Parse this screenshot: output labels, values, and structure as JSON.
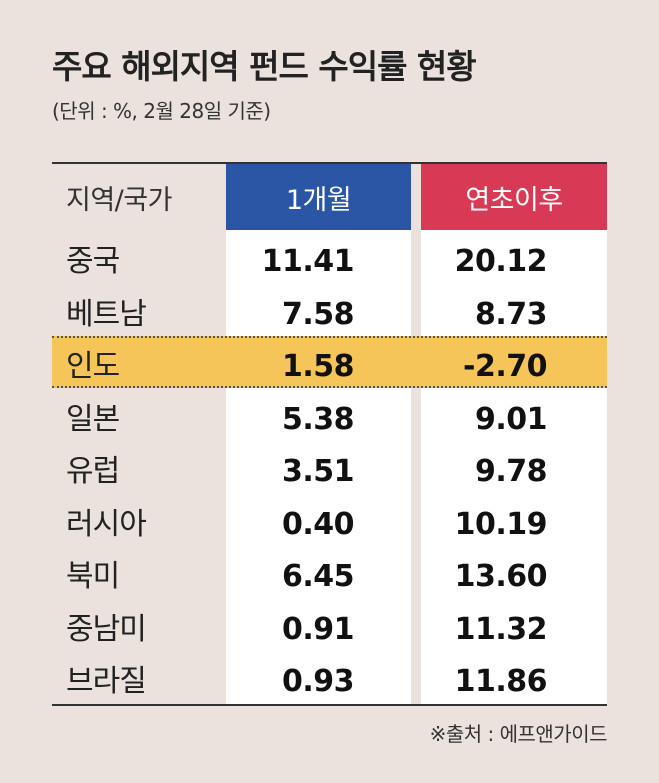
{
  "chart_data": {
    "type": "table",
    "title": "주요 해외지역 펀드 수익률 현황",
    "subtitle": "(단위 : %, 2월 28일 기준)",
    "columns": [
      "지역/국가",
      "1개월",
      "연초이후"
    ],
    "header_colors": {
      "1개월": "#2a56a5",
      "연초이후": "#d83a55"
    },
    "highlight_color": "#f5c55a",
    "highlighted_row": "인도",
    "rows": [
      {
        "region": "중국",
        "month1": "11.41",
        "ytd": "20.12"
      },
      {
        "region": "베트남",
        "month1": "7.58",
        "ytd": "8.73"
      },
      {
        "region": "인도",
        "month1": "1.58",
        "ytd": "-2.70"
      },
      {
        "region": "일본",
        "month1": "5.38",
        "ytd": "9.01"
      },
      {
        "region": "유럽",
        "month1": "3.51",
        "ytd": "9.78"
      },
      {
        "region": "러시아",
        "month1": "0.40",
        "ytd": "10.19"
      },
      {
        "region": "북미",
        "month1": "6.45",
        "ytd": "13.60"
      },
      {
        "region": "중남미",
        "month1": "0.91",
        "ytd": "11.32"
      },
      {
        "region": "브라질",
        "month1": "0.93",
        "ytd": "11.86"
      }
    ],
    "source": "※출처 : 에프앤가이드"
  }
}
